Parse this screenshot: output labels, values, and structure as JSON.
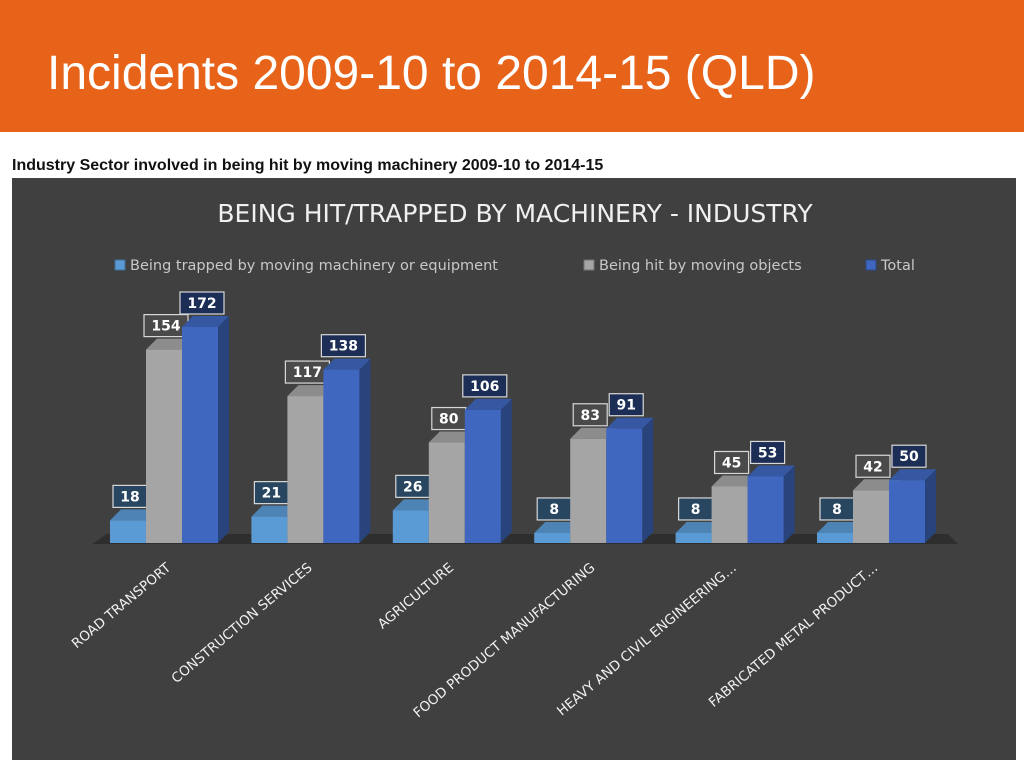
{
  "header": {
    "title": "Incidents 2009-10 to 2014-15 (QLD)"
  },
  "caption": "Industry Sector involved in being hit by moving machinery 2009-10 to 2014-15",
  "chart_data": {
    "type": "bar",
    "title": "BEING HIT/TRAPPED BY MACHINERY - INDUSTRY",
    "categories": [
      "ROAD TRANSPORT",
      "CONSTRUCTION SERVICES",
      "AGRICULTURE",
      "FOOD PRODUCT MANUFACTURING",
      "HEAVY AND CIVIL ENGINEERING…",
      "FABRICATED METAL PRODUCT…"
    ],
    "series": [
      {
        "name": "Being trapped by moving machinery or equipment",
        "color": "#5b9bd5",
        "values": [
          18,
          21,
          26,
          8,
          8,
          8
        ]
      },
      {
        "name": "Being hit by moving objects",
        "color": "#a5a5a5",
        "values": [
          154,
          117,
          80,
          83,
          45,
          42
        ]
      },
      {
        "name": "Total",
        "color": "#3f67c0",
        "values": [
          172,
          138,
          106,
          91,
          53,
          50
        ]
      }
    ],
    "legend": "top"
  }
}
